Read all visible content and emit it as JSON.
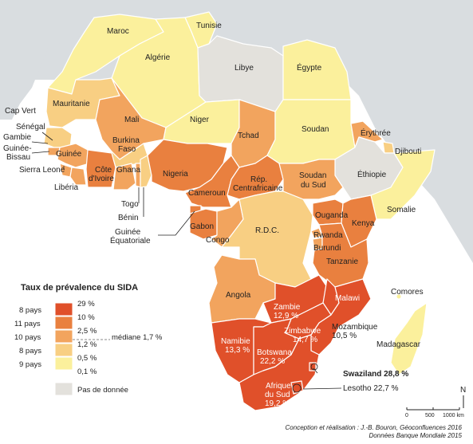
{
  "countries": {
    "maroc": "Maroc",
    "tunisie": "Tunisie",
    "algerie": "Algérie",
    "libye": "Libye",
    "egypte": "Égypte",
    "cap_vert": "Cap Vert",
    "mauritanie": "Mauritanie",
    "mali": "Mali",
    "niger": "Niger",
    "tchad": "Tchad",
    "soudan": "Soudan",
    "erythree": "Érythrée",
    "djibouti": "Djibouti",
    "senegal": "Sénégal",
    "gambie": "Gambie",
    "guinee_bissau_1": "Guinée-",
    "guinee_bissau_2": "Bissau",
    "guinee": "Guinée",
    "sierra_leone": "Sierra Leone",
    "liberia": "Libéria",
    "cote_ivoire_1": "Côte",
    "cote_ivoire_2": "d'Ivoire",
    "burkina_1": "Burkina",
    "burkina_2": "Faso",
    "ghana": "Ghana",
    "togo": "Togo",
    "benin": "Bénin",
    "nigeria": "Nigeria",
    "cameroun": "Cameroun",
    "rca_1": "Rép.",
    "rca_2": "Centrafricaine",
    "soudan_sud_1": "Soudan",
    "soudan_sud_2": "du Sud",
    "ethiopie": "Éthiopie",
    "somalie": "Somalie",
    "guinee_eq_1": "Guinée",
    "guinee_eq_2": "Équatoriale",
    "gabon": "Gabon",
    "congo": "Congo",
    "rdc": "R.D.C.",
    "ouganda": "Ouganda",
    "kenya": "Kenya",
    "rwanda": "Rwanda",
    "burundi": "Burundi",
    "tanzanie": "Tanzanie",
    "angola": "Angola",
    "malawi": "Malawi",
    "comores": "Comores",
    "zambie_1": "Zambie",
    "zambie_2": "12,9 %",
    "zimbabwe_1": "Zimbabwe",
    "zimbabwe_2": "14,7 %",
    "mozambique_1": "Mozambique",
    "mozambique_2": "10,5 %",
    "madagascar": "Madagascar",
    "namibie_1": "Namibie",
    "namibie_2": "13,3 %",
    "botswana_1": "Botswana",
    "botswana_2": "22,2 %",
    "afrique_sud_1": "Afrique",
    "afrique_sud_2": "du Sud",
    "afrique_sud_3": "19,2 %",
    "swaziland": "Swaziland 28,8 %",
    "lesotho": "Lesotho 22,7 %"
  },
  "legend": {
    "title": "Taux de prévalence du SIDA",
    "classes": [
      {
        "count": "8 pays",
        "upper": "29 %",
        "color": "#e0502a"
      },
      {
        "count": "11 pays",
        "upper": "10 %",
        "color": "#e9803f"
      },
      {
        "count": "10 pays",
        "upper": "2,5 %",
        "color": "#f2a45e"
      },
      {
        "count": "8 pays",
        "upper": "1,2 %",
        "color": "#f8cf83"
      },
      {
        "count": "9 pays",
        "upper": "0,5 %",
        "color": "#fbf09c"
      }
    ],
    "lowest": "0,1 %",
    "median": "médiane 1,7 %",
    "no_data": "Pas de donnée",
    "no_data_color": "#e3e1dc"
  },
  "scale": {
    "north": "N",
    "ticks": [
      "0",
      "500",
      "1000 km"
    ]
  },
  "credits": {
    "line1": "Conception et réalisation : J.-B. Bouron, Géoconfluences 2016",
    "line2": "Données Banque Mondiale 2015"
  },
  "colors": {
    "sea": "#d9dde0",
    "c29": "#e0502a",
    "c10": "#e9803f",
    "c25": "#f2a45e",
    "c12": "#f8cf83",
    "c05": "#fbf09c",
    "nodata": "#e3e1dc"
  }
}
